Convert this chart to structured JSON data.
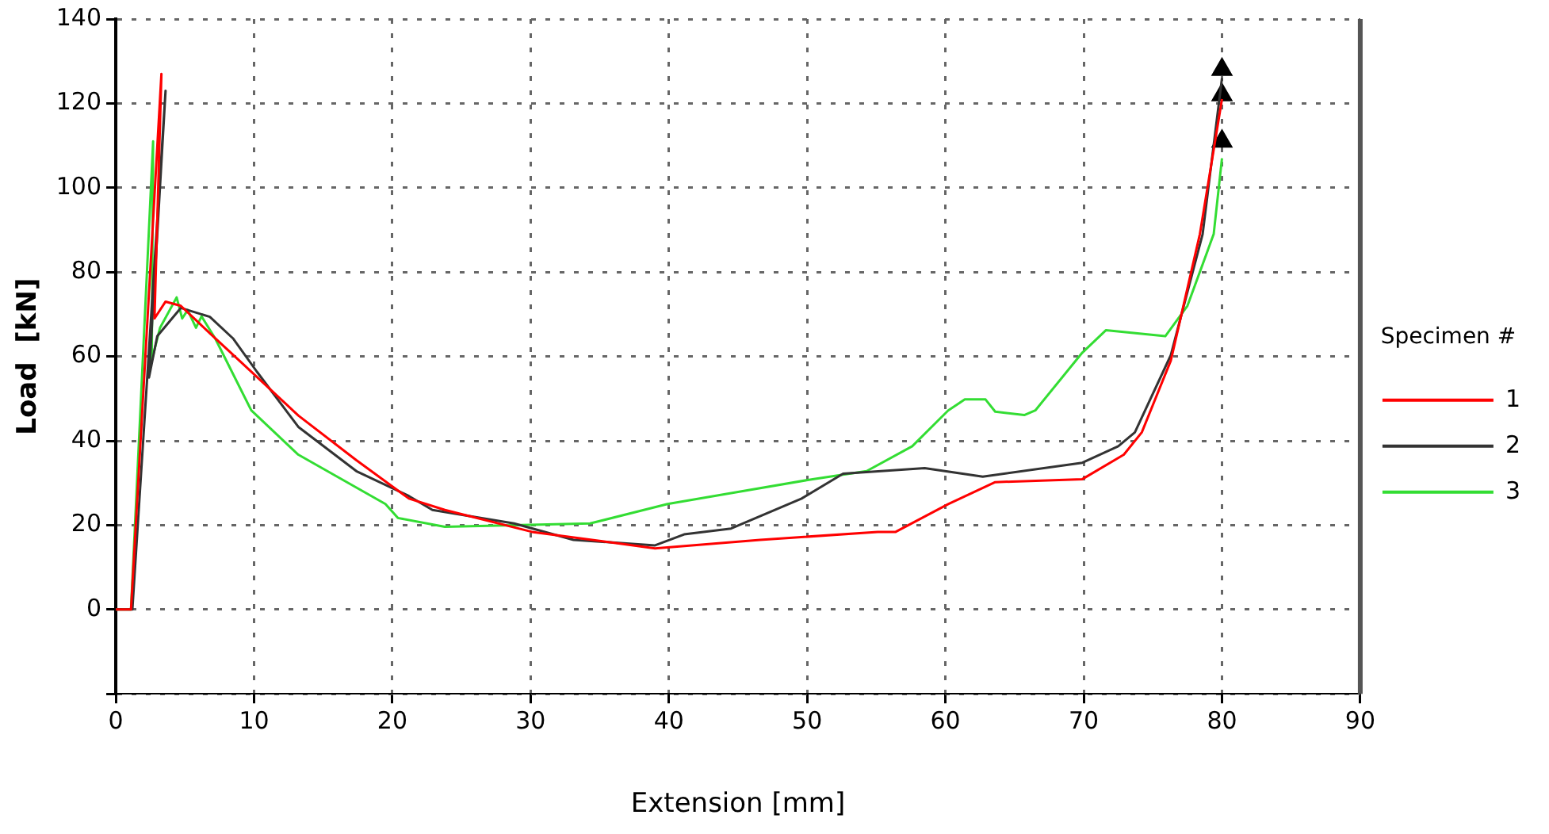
{
  "chart_data": {
    "type": "line",
    "xlabel": "Extension [mm]",
    "ylabel": "Load  [kN]",
    "legend_title": "Specimen #",
    "xlim": [
      0,
      90
    ],
    "xticks": [
      0,
      10,
      20,
      30,
      40,
      50,
      60,
      70,
      80,
      90
    ],
    "ylim": [
      -20,
      140
    ],
    "yticks": [
      {
        "value": -20,
        "label": null
      },
      0,
      20,
      40,
      60,
      80,
      100,
      120,
      140
    ],
    "grid": true,
    "legend": "right",
    "marker": "none",
    "line_style": "solid",
    "series": [
      {
        "name": "1",
        "color": "#ff0000",
        "x": [
          0,
          1.1,
          3.3,
          2.8,
          3.6,
          4.7,
          6.8,
          9.4,
          13.2,
          17.4,
          21.2,
          23.8,
          30.1,
          39,
          46.6,
          55.1,
          56.4,
          60.2,
          63.6,
          69.9,
          72.9,
          74.2,
          76.3,
          78.4,
          80
        ],
        "values": [
          0,
          0,
          127,
          69,
          73,
          72,
          65.5,
          57.6,
          46,
          35.4,
          26.3,
          23.6,
          18.4,
          14.5,
          16.5,
          18.4,
          18.4,
          25,
          30.2,
          30.9,
          36.7,
          42,
          59,
          89,
          121
        ]
      },
      {
        "name": "2",
        "color": "#333333",
        "x": [
          0,
          1.2,
          3.6,
          2.4,
          3,
          4.7,
          6.8,
          8.5,
          10.2,
          13.2,
          17.4,
          21.2,
          22.9,
          28.8,
          33.1,
          39,
          41.1,
          44.5,
          49.6,
          52.6,
          58.5,
          62.7,
          69.9,
          72.5,
          73.7,
          76.3,
          78.6,
          80
        ],
        "values": [
          0,
          0,
          123,
          55,
          64.8,
          71.5,
          69.4,
          64.2,
          56.4,
          43.3,
          32.8,
          26.9,
          23.6,
          20.4,
          16.5,
          15.2,
          17.8,
          19.2,
          26.3,
          32.2,
          33.5,
          31.5,
          34.8,
          38.7,
          42,
          60.3,
          89,
          126
        ]
      },
      {
        "name": "3",
        "color": "#33dd33",
        "x": [
          0,
          1.1,
          2.7,
          2.6,
          3.2,
          4.4,
          4.8,
          5.2,
          5.8,
          6.2,
          7.2,
          9.8,
          13.2,
          19.5,
          20.4,
          23.8,
          34.3,
          39.9,
          44.5,
          50.4,
          54.3,
          57.6,
          60.2,
          61.4,
          62.9,
          63.6,
          65.7,
          66.5,
          69.9,
          71.6,
          75.9,
          77.5,
          79.4,
          80
        ],
        "values": [
          0,
          0,
          111,
          59,
          66.8,
          74,
          69,
          71,
          66.8,
          69.5,
          64.2,
          47.2,
          36.7,
          25,
          21.7,
          19.6,
          20.4,
          25,
          27.6,
          30.9,
          32.8,
          38.7,
          47.2,
          49.8,
          49.8,
          46.9,
          46.1,
          47.2,
          60.9,
          66.2,
          64.8,
          72,
          89,
          107
        ]
      },
      {
        "type": "scatter",
        "marker": "triangle",
        "color": "#000000",
        "x": [
          80,
          80,
          80
        ],
        "values": [
          128,
          122,
          111
        ]
      }
    ]
  }
}
